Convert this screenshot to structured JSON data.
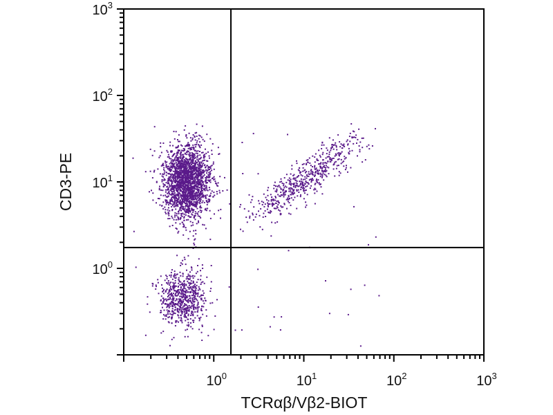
{
  "chart_data": {
    "type": "scatter",
    "title": "",
    "xlabel": "TCRαβ/Vβ2-BIOT",
    "ylabel": "CD3-PE",
    "xscale": "log",
    "yscale": "log",
    "xlim": [
      0.1,
      1000
    ],
    "ylim": [
      0.1,
      1000
    ],
    "x_ticks": [
      {
        "base": "10",
        "exp": "0",
        "value": 1
      },
      {
        "base": "10",
        "exp": "1",
        "value": 10
      },
      {
        "base": "10",
        "exp": "2",
        "value": 100
      },
      {
        "base": "10",
        "exp": "3",
        "value": 1000
      }
    ],
    "y_ticks": [
      {
        "base": "10",
        "exp": "0",
        "value": 1
      },
      {
        "base": "10",
        "exp": "1",
        "value": 10
      },
      {
        "base": "10",
        "exp": "2",
        "value": 100
      },
      {
        "base": "10",
        "exp": "3",
        "value": 1000
      }
    ],
    "quadrant_gates": {
      "x": 1.55,
      "y": 1.74
    },
    "point_color": "#5a1a8a",
    "grid": false,
    "legend": "none",
    "populations": [
      {
        "center_x": 0.5,
        "center_y": 10,
        "spread_log_x": 0.13,
        "spread_log_y": 0.22,
        "count": 2100
      },
      {
        "center_x": 0.45,
        "center_y": 0.45,
        "spread_log_x": 0.13,
        "spread_log_y": 0.16,
        "count": 650
      },
      {
        "start_x": 2.5,
        "start_y": 3.5,
        "end_x": 35,
        "end_y": 28,
        "spread_log": 0.09,
        "count": 550
      },
      {
        "count": 70
      }
    ],
    "seed": 12345
  }
}
